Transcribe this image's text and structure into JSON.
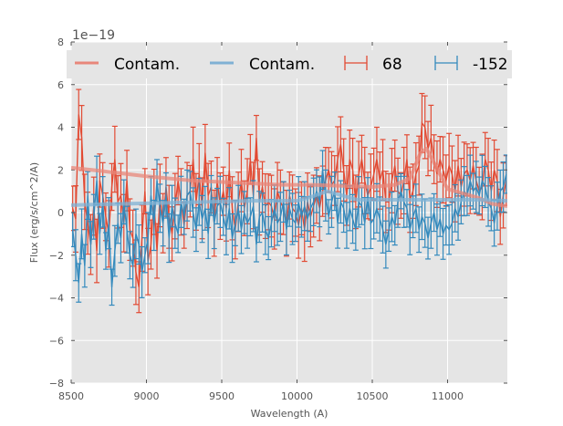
{
  "chart_data": {
    "type": "line",
    "title": "",
    "xlabel": "Wavelength (A)",
    "ylabel": "Flux (erg/s/cm^2/A)",
    "y_offset_label": "1e−19",
    "xlim": [
      8500,
      11397
    ],
    "ylim": [
      -8,
      8
    ],
    "xticks": [
      8500,
      9000,
      9500,
      10000,
      10500,
      11000
    ],
    "xtick_labels": [
      "8500",
      "9000",
      "9500",
      "10000",
      "10500",
      "11000"
    ],
    "yticks": [
      -8,
      -6,
      -4,
      -2,
      0,
      2,
      4,
      6,
      8
    ],
    "ytick_labels": [
      "−8",
      "−6",
      "−4",
      "−2",
      "0",
      "2",
      "4",
      "6",
      "8"
    ],
    "grid": true,
    "legend_position": "top",
    "colors": {
      "red": "#E24A33",
      "red_contam": "#E8877A",
      "blue": "#348ABD",
      "blue_contam": "#7FB1D4",
      "axes_bg": "#E5E5E5",
      "grid": "#FFFFFF"
    },
    "legend": [
      {
        "label": "Contam.",
        "kind": "line",
        "series": "red_contam"
      },
      {
        "label": "Contam.",
        "kind": "line",
        "series": "blue_contam"
      },
      {
        "label": "68",
        "kind": "errorbar",
        "series": "red"
      },
      {
        "label": "-152",
        "kind": "errorbar",
        "series": "blue"
      }
    ],
    "contam_series": [
      {
        "name": "red_contam",
        "label": "Contam.",
        "x": [
          8500,
          8700,
          9000,
          9300,
          9600,
          9900,
          10100,
          10300,
          10500,
          10650,
          10750,
          10820,
          10860,
          10920,
          11000,
          11100,
          11200,
          11300,
          11397
        ],
        "y": [
          2.1,
          1.95,
          1.7,
          1.5,
          1.4,
          1.3,
          1.3,
          1.25,
          1.2,
          1.3,
          1.6,
          2.8,
          3.0,
          2.2,
          1.1,
          0.9,
          0.7,
          0.4,
          0.3
        ]
      },
      {
        "name": "blue_contam",
        "label": "Contam.",
        "x": [
          8500,
          8800,
          9100,
          9400,
          9700,
          10000,
          10100,
          10200,
          10300,
          10400,
          10600,
          10800,
          11000,
          11200,
          11397
        ],
        "y": [
          0.35,
          0.4,
          0.45,
          0.5,
          0.55,
          0.55,
          0.75,
          1.0,
          0.8,
          0.6,
          0.6,
          0.6,
          0.6,
          0.6,
          0.55
        ]
      }
    ],
    "series": [
      {
        "name": "68",
        "color_key": "red",
        "x": [
          8510,
          8530,
          8550,
          8570,
          8590,
          8610,
          8630,
          8650,
          8670,
          8690,
          8710,
          8730,
          8750,
          8770,
          8790,
          8810,
          8830,
          8850,
          8870,
          8890,
          8910,
          8930,
          8950,
          8970,
          8990,
          9010,
          9030,
          9050,
          9070,
          9090,
          9110,
          9130,
          9150,
          9170,
          9190,
          9210,
          9230,
          9250,
          9270,
          9290,
          9310,
          9330,
          9350,
          9370,
          9390,
          9410,
          9430,
          9450,
          9470,
          9490,
          9510,
          9530,
          9550,
          9570,
          9590,
          9610,
          9630,
          9650,
          9670,
          9690,
          9710,
          9730,
          9750,
          9770,
          9790,
          9810,
          9830,
          9850,
          9870,
          9890,
          9910,
          9930,
          9950,
          9970,
          9990,
          10010,
          10030,
          10050,
          10070,
          10090,
          10110,
          10130,
          10150,
          10170,
          10190,
          10210,
          10230,
          10250,
          10270,
          10290,
          10310,
          10330,
          10350,
          10370,
          10390,
          10410,
          10430,
          10450,
          10470,
          10490,
          10510,
          10530,
          10550,
          10570,
          10590,
          10610,
          10630,
          10650,
          10670,
          10690,
          10710,
          10730,
          10750,
          10770,
          10790,
          10810,
          10830,
          10850,
          10870,
          10890,
          10910,
          10930,
          10950,
          10970,
          10990,
          11010,
          11030,
          11050,
          11070,
          11090,
          11110,
          11130,
          11150,
          11170,
          11190,
          11210,
          11230,
          11250,
          11270,
          11290,
          11310,
          11330,
          11350,
          11370,
          11390
        ],
        "y": [
          0.2,
          -0.3,
          4.6,
          3.5,
          0.5,
          -0.5,
          -1.5,
          0.3,
          -1.8,
          1.5,
          0.8,
          -0.2,
          -1.0,
          1.2,
          2.5,
          0.5,
          0.8,
          -0.5,
          1.5,
          -0.8,
          -1.2,
          -2.8,
          -3.5,
          -1.2,
          1.0,
          -2.3,
          -1.5,
          0.5,
          -1.8,
          0.8,
          -0.5,
          1.2,
          -0.2,
          -1.0,
          0.3,
          1.5,
          0.5,
          -0.6,
          0.8,
          1.0,
          2.5,
          0.5,
          1.8,
          0.2,
          2.8,
          0.8,
          1.2,
          -0.5,
          1.5,
          0.3,
          1.0,
          0.2,
          2.0,
          0.2,
          -0.8,
          0.5,
          1.5,
          0.2,
          1.0,
          2.5,
          0.8,
          3.5,
          0.5,
          1.2,
          0.3,
          0.5,
          0.3,
          -0.3,
          1.0,
          0.5,
          0.2,
          -0.5,
          0.8,
          0.2,
          0.0,
          -0.6,
          0.2,
          -0.8,
          0.5,
          -0.2,
          0.3,
          0.8,
          0.2,
          1.0,
          1.5,
          2.0,
          1.3,
          1.5,
          2.5,
          3.2,
          2.0,
          0.8,
          2.5,
          2.0,
          0.5,
          1.8,
          2.5,
          1.5,
          0.8,
          1.2,
          1.8,
          2.5,
          1.5,
          2.0,
          0.5,
          0.5,
          1.5,
          2.2,
          1.0,
          0.8,
          1.5,
          2.5,
          0.6,
          1.0,
          1.8,
          2.2,
          4.2,
          4.0,
          3.0,
          3.5,
          2.5,
          1.8,
          2.5,
          2.0,
          1.5,
          2.2,
          1.8,
          1.0,
          2.2,
          1.2,
          1.8,
          2.0,
          1.5,
          2.2,
          1.5,
          1.0,
          1.2,
          2.5,
          2.0,
          1.0,
          2.0,
          1.5,
          -0.2,
          0.8,
          1.5
        ],
        "yerr": 1.3
      },
      {
        "name": "-152",
        "color_key": "blue",
        "x": [
          8510,
          8530,
          8550,
          8570,
          8590,
          8610,
          8630,
          8650,
          8670,
          8690,
          8710,
          8730,
          8750,
          8770,
          8790,
          8810,
          8830,
          8850,
          8870,
          8890,
          8910,
          8930,
          8950,
          8970,
          8990,
          9010,
          9030,
          9050,
          9070,
          9090,
          9110,
          9130,
          9150,
          9170,
          9190,
          9210,
          9230,
          9250,
          9270,
          9290,
          9310,
          9330,
          9350,
          9370,
          9390,
          9410,
          9430,
          9450,
          9470,
          9490,
          9510,
          9530,
          9550,
          9570,
          9590,
          9610,
          9630,
          9650,
          9670,
          9690,
          9710,
          9730,
          9750,
          9770,
          9790,
          9810,
          9830,
          9850,
          9870,
          9890,
          9910,
          9930,
          9950,
          9970,
          9990,
          10010,
          10030,
          10050,
          10070,
          10090,
          10110,
          10130,
          10150,
          10170,
          10190,
          10210,
          10230,
          10250,
          10270,
          10290,
          10310,
          10330,
          10350,
          10370,
          10390,
          10410,
          10430,
          10450,
          10470,
          10490,
          10510,
          10530,
          10550,
          10570,
          10590,
          10610,
          10630,
          10650,
          10670,
          10690,
          10710,
          10730,
          10750,
          10770,
          10790,
          10810,
          10830,
          10850,
          10870,
          10890,
          10910,
          10930,
          10950,
          10970,
          10990,
          11010,
          11030,
          11050,
          11070,
          11090,
          11110,
          11130,
          11150,
          11170,
          11190,
          11210,
          11230,
          11250,
          11270,
          11290,
          11310,
          11330,
          11350,
          11370,
          11390
        ],
        "y": [
          -0.8,
          -2.0,
          -3.3,
          -1.0,
          -2.5,
          0.8,
          -1.5,
          -0.2,
          1.5,
          -1.0,
          0.5,
          -1.8,
          -0.5,
          -3.5,
          -1.8,
          -0.5,
          -1.2,
          0.5,
          -0.8,
          -2.0,
          -2.5,
          -1.0,
          -1.5,
          -2.8,
          -2.0,
          -1.2,
          0.8,
          -0.6,
          1.5,
          0.2,
          -0.5,
          0.8,
          -1.2,
          0.3,
          -0.5,
          -1.0,
          0.5,
          -0.2,
          0.8,
          1.0,
          0.0,
          -0.8,
          0.5,
          -0.3,
          0.2,
          -1.0,
          0.8,
          -0.5,
          0.3,
          0.5,
          -0.2,
          -0.8,
          0.2,
          -1.2,
          -0.5,
          0.2,
          -0.8,
          0.0,
          -0.5,
          -0.2,
          0.3,
          -1.5,
          -0.2,
          0.0,
          -0.8,
          -1.2,
          -0.5,
          0.2,
          -0.5,
          -0.2,
          0.5,
          -0.8,
          0.2,
          -0.3,
          -0.5,
          0.5,
          -0.2,
          0.3,
          -0.3,
          0.2,
          0.5,
          1.0,
          0.5,
          2.0,
          0.8,
          -0.2,
          0.5,
          1.0,
          -0.5,
          0.5,
          0.2,
          -0.6,
          0.2,
          -0.3,
          -0.8,
          0.5,
          0.3,
          -0.5,
          0.8,
          -0.5,
          -0.3,
          0.2,
          -0.3,
          -0.8,
          -1.5,
          -0.8,
          -0.2,
          -0.6,
          0.5,
          1.0,
          0.5,
          0.2,
          -0.8,
          -0.2,
          0.2,
          -0.8,
          -0.2,
          -0.5,
          -1.2,
          -0.5,
          0.0,
          -0.8,
          -0.3,
          -1.0,
          -0.6,
          -0.8,
          -0.5,
          0.2,
          -0.2,
          0.5,
          1.0,
          0.8,
          1.5,
          1.0,
          1.2,
          0.8,
          1.5,
          1.2,
          0.5,
          0.2,
          -0.5,
          0.3,
          1.0,
          1.2,
          1.8
        ],
        "yerr": 1.0
      }
    ]
  }
}
